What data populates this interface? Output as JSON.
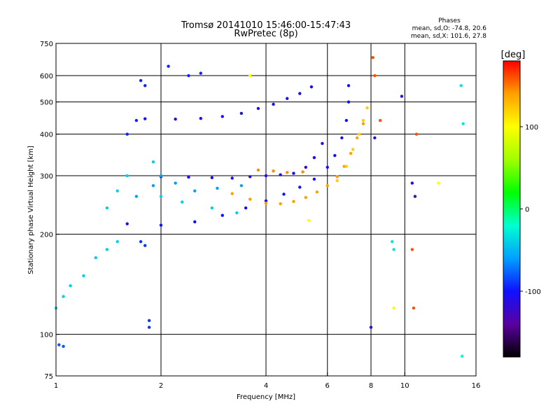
{
  "chart_data": {
    "type": "scatter",
    "title": "Tromsø 20141010 15:46:00-15:47:43",
    "subtitle": "RwPretec (8p)",
    "phase_header": "Phases",
    "phase_stats": [
      "mean, sd,O: -74.8, 20.6",
      "mean, sd,X: 101.6, 27.8"
    ],
    "xlabel": "Frequency [MHz]",
    "ylabel": "Stationary phase Virtual Height [km]",
    "x_scale": "log",
    "y_scale": "log",
    "xlim": [
      1,
      16
    ],
    "ylim": [
      75,
      750
    ],
    "x_ticks": [
      {
        "value": 1,
        "label": "1"
      },
      {
        "value": 2,
        "label": "2"
      },
      {
        "value": 4,
        "label": "4"
      },
      {
        "value": 6,
        "label": "6"
      },
      {
        "value": 8,
        "label": "8"
      },
      {
        "value": 10,
        "label": "10"
      },
      {
        "value": 16,
        "label": "16"
      }
    ],
    "x_gridlines": [
      2,
      4,
      6,
      8,
      10
    ],
    "y_ticks": [
      {
        "value": 75,
        "label": "75"
      },
      {
        "value": 100,
        "label": "100"
      },
      {
        "value": 200,
        "label": "200"
      },
      {
        "value": 300,
        "label": "300"
      },
      {
        "value": 400,
        "label": "400"
      },
      {
        "value": 500,
        "label": "500"
      },
      {
        "value": 600,
        "label": "600"
      },
      {
        "value": 750,
        "label": "750"
      }
    ],
    "y_gridlines": [
      100,
      200,
      300,
      400,
      500,
      600
    ],
    "colorbar": {
      "label": "[deg]",
      "range": [
        -180,
        180
      ],
      "ticks": [
        {
          "value": 100,
          "label": "100"
        },
        {
          "value": 0,
          "label": "0"
        },
        {
          "value": -100,
          "label": "-100"
        }
      ],
      "colors": [
        "#000000",
        "#5a00a0",
        "#1010ff",
        "#00a0ff",
        "#00ffd0",
        "#00ff00",
        "#a0ff00",
        "#ffff00",
        "#ffa000",
        "#ff0000"
      ]
    },
    "series": [
      {
        "phase": -100,
        "points": [
          [
            1.6,
            215
          ],
          [
            2,
            213
          ],
          [
            2.5,
            218
          ],
          [
            3,
            228
          ],
          [
            3.5,
            240
          ],
          [
            4,
            252
          ],
          [
            4.5,
            264
          ],
          [
            5,
            277
          ],
          [
            5.5,
            293
          ],
          [
            6,
            318
          ],
          [
            6.3,
            345
          ],
          [
            6.6,
            390
          ],
          [
            6.8,
            440
          ],
          [
            6.9,
            500
          ],
          [
            6.9,
            560
          ]
        ]
      },
      {
        "phase": -110,
        "points": [
          [
            2,
            298
          ],
          [
            2.4,
            297
          ],
          [
            2.8,
            296
          ],
          [
            3.2,
            295
          ],
          [
            3.6,
            298
          ],
          [
            4,
            300
          ],
          [
            4.4,
            302
          ],
          [
            4.8,
            305
          ],
          [
            5.2,
            318
          ],
          [
            5.5,
            340
          ],
          [
            5.8,
            375
          ]
        ]
      },
      {
        "phase": -105,
        "points": [
          [
            1.8,
            445
          ],
          [
            2.2,
            444
          ],
          [
            2.6,
            446
          ],
          [
            3,
            452
          ],
          [
            3.4,
            462
          ],
          [
            3.8,
            478
          ],
          [
            4.2,
            492
          ],
          [
            4.6,
            512
          ],
          [
            5,
            530
          ],
          [
            5.4,
            555
          ]
        ]
      },
      {
        "phase": -95,
        "points": [
          [
            1.6,
            400
          ],
          [
            1.7,
            440
          ],
          [
            1.75,
            580
          ],
          [
            1.8,
            560
          ],
          [
            2.1,
            640
          ],
          [
            2.4,
            600
          ],
          [
            2.6,
            610
          ]
        ]
      },
      {
        "phase": 140,
        "points": [
          [
            3.2,
            265
          ],
          [
            3.6,
            255
          ],
          [
            4,
            248
          ],
          [
            4.4,
            247
          ],
          [
            4.8,
            251
          ],
          [
            5.2,
            258
          ],
          [
            5.6,
            268
          ],
          [
            6,
            280
          ],
          [
            6.4,
            298
          ],
          [
            6.7,
            320
          ],
          [
            7,
            350
          ],
          [
            7.3,
            390
          ],
          [
            7.6,
            430
          ]
        ]
      },
      {
        "phase": 120,
        "points": [
          [
            6.4,
            290
          ],
          [
            6.8,
            320
          ],
          [
            7.1,
            360
          ],
          [
            7.4,
            400
          ],
          [
            7.6,
            440
          ],
          [
            7.8,
            480
          ]
        ]
      },
      {
        "phase": 145,
        "points": [
          [
            3.8,
            312
          ],
          [
            4.2,
            310
          ],
          [
            4.6,
            307
          ],
          [
            5.1,
            308
          ]
        ]
      },
      {
        "phase": -40,
        "points": [
          [
            1,
            120
          ],
          [
            1.05,
            130
          ],
          [
            1.1,
            140
          ],
          [
            1.2,
            150
          ],
          [
            1.3,
            170
          ],
          [
            1.4,
            180
          ],
          [
            1.5,
            190
          ],
          [
            1.4,
            240
          ],
          [
            1.5,
            270
          ],
          [
            1.6,
            300
          ],
          [
            1.9,
            330
          ],
          [
            2,
            260
          ],
          [
            2.3,
            250
          ],
          [
            2.8,
            240
          ],
          [
            3.3,
            232
          ]
        ]
      },
      {
        "phase": -60,
        "points": [
          [
            1.7,
            260
          ],
          [
            1.9,
            280
          ],
          [
            2,
            300
          ],
          [
            2.2,
            285
          ],
          [
            2.5,
            270
          ],
          [
            2.9,
            275
          ],
          [
            3.4,
            280
          ]
        ]
      },
      {
        "phase": -90,
        "points": [
          [
            1.75,
            190
          ],
          [
            1.8,
            185
          ],
          [
            1.85,
            110
          ],
          [
            1.85,
            105
          ]
        ]
      },
      {
        "phase": -80,
        "points": [
          [
            1.02,
            93
          ],
          [
            1.05,
            92
          ]
        ]
      },
      {
        "phase": -30,
        "points": [
          [
            9.2,
            190
          ],
          [
            9.3,
            180
          ],
          [
            14.5,
            560
          ],
          [
            14.7,
            430
          ]
        ]
      },
      {
        "phase": 160,
        "points": [
          [
            8.1,
            680
          ],
          [
            8.2,
            600
          ],
          [
            8.5,
            440
          ],
          [
            10.5,
            180
          ],
          [
            10.6,
            120
          ],
          [
            10.8,
            400
          ]
        ]
      },
      {
        "phase": 100,
        "points": [
          [
            3.6,
            600
          ],
          [
            5.3,
            220
          ],
          [
            9.3,
            120
          ],
          [
            12.5,
            285
          ]
        ]
      },
      {
        "phase": -120,
        "points": [
          [
            8,
            105
          ],
          [
            8.2,
            390
          ],
          [
            9.8,
            520
          ],
          [
            10.5,
            285
          ],
          [
            10.7,
            260
          ]
        ]
      },
      {
        "phase": -20,
        "points": [
          [
            14.6,
            86
          ]
        ]
      }
    ]
  }
}
